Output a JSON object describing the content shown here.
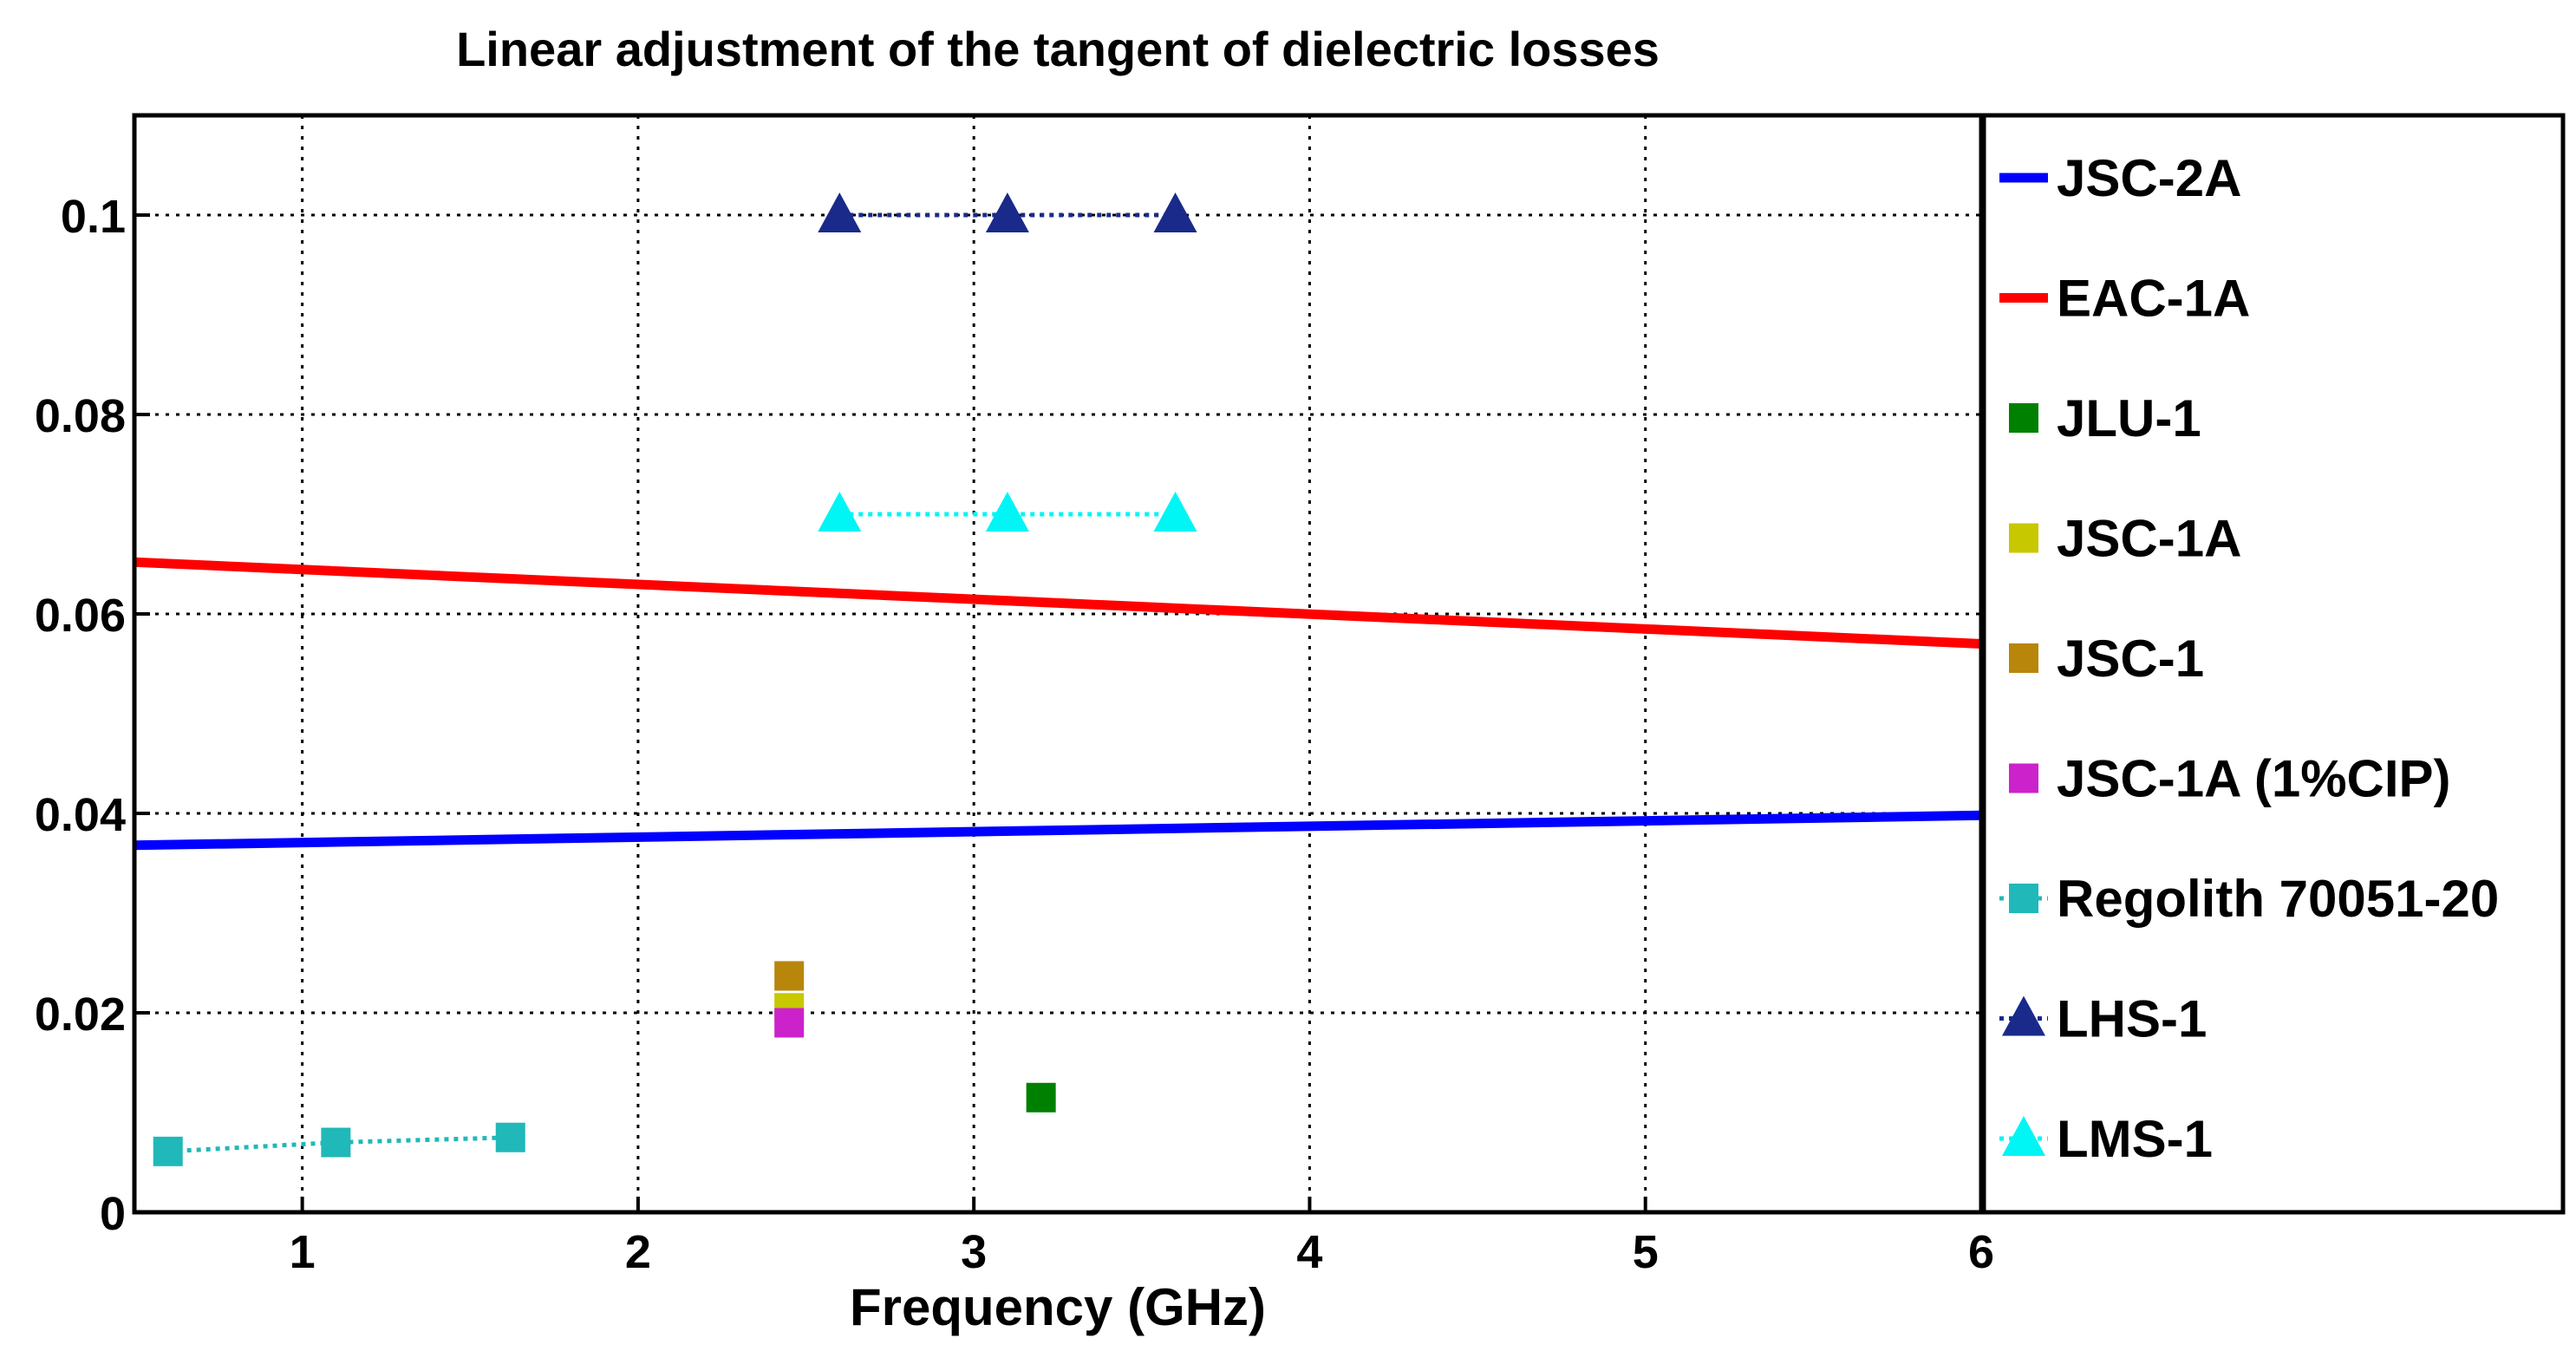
{
  "chart_data": {
    "type": "line",
    "title": "Linear adjustment of the tangent of dielectric losses",
    "xlabel": "Frequency (GHz)",
    "ylabel": "",
    "xlim": [
      0.5,
      6
    ],
    "ylim": [
      0,
      0.11
    ],
    "xticks": [
      1,
      2,
      3,
      4,
      5,
      6
    ],
    "xtick_labels": [
      "1",
      "2",
      "3",
      "4",
      "5",
      "6"
    ],
    "yticks": [
      0,
      0.02,
      0.04,
      0.06,
      0.08,
      0.1
    ],
    "ytick_labels": [
      "0",
      "0.02",
      "0.04",
      "0.06",
      "0.08",
      "0.1"
    ],
    "grid": true,
    "legend_position": "right-outside",
    "series": [
      {
        "name": "JSC-2A",
        "color": "#0000ff",
        "style": "line",
        "marker": "none",
        "x": [
          0.5,
          6
        ],
        "y": [
          0.0368,
          0.0398
        ]
      },
      {
        "name": "EAC-1A",
        "color": "#ff0000",
        "style": "line",
        "marker": "none",
        "x": [
          0.5,
          6
        ],
        "y": [
          0.0652,
          0.057
        ]
      },
      {
        "name": "JLU-1",
        "color": "#008000",
        "style": "none",
        "marker": "square",
        "x": [
          3.2
        ],
        "y": [
          0.0115
        ]
      },
      {
        "name": "JSC-1A",
        "color": "#c8c800",
        "style": "none",
        "marker": "square",
        "x": [
          2.45
        ],
        "y": [
          0.0205
        ]
      },
      {
        "name": "JSC-1",
        "color": "#b8860b",
        "style": "none",
        "marker": "square",
        "x": [
          2.45
        ],
        "y": [
          0.0237
        ]
      },
      {
        "name": "JSC-1A (1%CIP)",
        "color": "#cc22cc",
        "style": "none",
        "marker": "square",
        "x": [
          2.45
        ],
        "y": [
          0.019
        ]
      },
      {
        "name": "Regolith 70051-20",
        "color": "#20b8b8",
        "style": "dotted",
        "marker": "square",
        "x": [
          0.6,
          1.1,
          1.62
        ],
        "y": [
          0.0061,
          0.007,
          0.0075
        ]
      },
      {
        "name": "LHS-1",
        "color": "#1a2a8a",
        "style": "dotted",
        "marker": "triangle",
        "x": [
          2.6,
          3.1,
          3.6
        ],
        "y": [
          0.1,
          0.1,
          0.1
        ]
      },
      {
        "name": "LMS-1",
        "color": "#00f5f5",
        "style": "dotted",
        "marker": "triangle",
        "x": [
          2.6,
          3.1,
          3.6
        ],
        "y": [
          0.07,
          0.07,
          0.07
        ]
      }
    ]
  }
}
